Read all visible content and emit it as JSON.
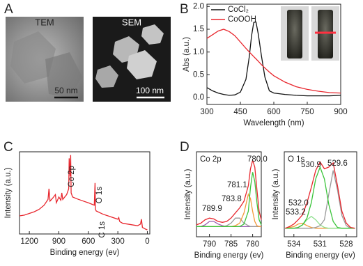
{
  "panel_a": {
    "letter": "A",
    "images": [
      {
        "label": "TEM",
        "scale_bar": "50 nm"
      },
      {
        "label": "SEM",
        "scale_bar": "100 nm"
      }
    ]
  },
  "chart_data": [
    {
      "type": "line",
      "panel_label": "B",
      "xlabel": "Wavelength (nm)",
      "ylabel": "Abs (a.u.)",
      "x": [
        300,
        325,
        350,
        375,
        400,
        425,
        450,
        475,
        490,
        500,
        510,
        520,
        530,
        545,
        560,
        580,
        600,
        650,
        700,
        750,
        800,
        850,
        900
      ],
      "series": [
        {
          "name": "CoCl₂",
          "color": "#111111",
          "values": [
            0.22,
            0.15,
            0.1,
            0.07,
            0.05,
            0.06,
            0.12,
            0.4,
            0.9,
            1.35,
            1.65,
            1.66,
            1.4,
            0.9,
            0.45,
            0.15,
            0.1,
            0.07,
            0.05,
            0.04,
            0.04,
            0.04,
            0.05
          ]
        },
        {
          "name": "CoOOH",
          "color": "#e8262d",
          "values": [
            1.3,
            1.38,
            1.46,
            1.5,
            1.45,
            1.36,
            1.22,
            1.08,
            1.0,
            0.95,
            0.9,
            0.85,
            0.8,
            0.72,
            0.65,
            0.56,
            0.48,
            0.34,
            0.24,
            0.18,
            0.14,
            0.11,
            0.1
          ]
        }
      ],
      "xlim": [
        300,
        900
      ],
      "xticks": [
        300,
        450,
        600,
        750,
        900
      ],
      "ylim": [
        -0.15,
        2.05
      ],
      "yticks": [
        {
          "value": 0,
          "label": "0.0"
        },
        {
          "value": 0.5,
          "label": "0.5"
        },
        {
          "value": 1,
          "label": "1.0"
        },
        {
          "value": 1.5,
          "label": "1.5"
        },
        {
          "value": 2,
          "label": "2.0"
        }
      ]
    },
    {
      "type": "line",
      "panel_label": "C",
      "xlabel": "Binding energy (ev)",
      "ylabel": "Intensity (a.u.)",
      "annotations": [
        "Co 2p",
        "O 1s",
        "C 1s"
      ],
      "x": [
        1300,
        1250,
        1200,
        1150,
        1100,
        1050,
        1010,
        1000,
        990,
        960,
        935,
        925,
        900,
        880,
        870,
        860,
        820,
        800,
        795,
        785,
        780,
        775,
        760,
        720,
        650,
        600,
        560,
        540,
        532,
        528,
        520,
        450,
        400,
        300,
        290,
        285,
        280,
        250,
        200,
        100,
        70,
        60,
        50,
        20,
        0
      ],
      "series": [
        {
          "color": "#e8262d",
          "values": [
            22,
            23,
            25,
            27,
            30,
            35,
            42,
            55,
            40,
            44,
            48,
            38,
            45,
            41,
            50,
            42,
            48,
            55,
            92,
            70,
            96,
            50,
            45,
            43,
            40,
            38,
            36,
            35,
            62,
            30,
            28,
            24,
            22,
            18,
            20,
            17,
            15,
            13,
            12,
            10,
            12,
            18,
            8,
            6,
            5
          ]
        }
      ],
      "xlim": [
        1300,
        -25
      ],
      "xticks": [
        1200,
        900,
        600,
        300,
        0
      ],
      "ylim": [
        0,
        100
      ]
    },
    {
      "type": "line",
      "panel_label": "D",
      "label": "Co 2p",
      "xlabel": "Binding energy (ev)",
      "ylabel": "Intensity (a.u.)",
      "annotations": [
        "789.9",
        "783.8",
        "781.1",
        "780.0"
      ],
      "x": [
        793,
        792,
        791,
        790,
        789,
        788,
        787,
        786,
        785,
        784,
        783,
        782,
        781,
        780.5,
        780,
        779.5,
        779,
        778.5,
        778
      ],
      "series": [
        {
          "color": "#9a5fb0",
          "values": [
            12,
            12,
            14,
            18,
            18,
            15,
            13,
            12,
            12,
            12,
            12,
            12,
            12,
            12,
            12,
            12,
            12,
            12,
            12
          ]
        },
        {
          "color": "#999999",
          "values": [
            12,
            12,
            12,
            12,
            12,
            12,
            12,
            13,
            16,
            22,
            22,
            16,
            13,
            12,
            12,
            12,
            12,
            12,
            12
          ]
        },
        {
          "color": "#f29a3a",
          "values": [
            12,
            12,
            12,
            12,
            12,
            12,
            12,
            12,
            12,
            13,
            16,
            28,
            50,
            45,
            30,
            18,
            13,
            12,
            12
          ]
        },
        {
          "color": "#3ac43a",
          "values": [
            12,
            12,
            12,
            12,
            12,
            12,
            12,
            12,
            12,
            12,
            12,
            15,
            30,
            58,
            76,
            65,
            40,
            20,
            14
          ]
        },
        {
          "color": "#e8262d",
          "values": [
            14,
            16,
            20,
            22,
            21,
            18,
            17,
            18,
            22,
            28,
            34,
            42,
            60,
            80,
            90,
            82,
            55,
            30,
            20
          ]
        }
      ],
      "xlim": [
        793,
        778
      ],
      "xticks": [
        790,
        785,
        780
      ],
      "ylim": [
        0,
        100
      ]
    },
    {
      "type": "line",
      "label": "O 1s",
      "xlabel": "Binding energy (ev)",
      "ylabel": "Intensity (a.u.)",
      "annotations": [
        "530.9",
        "529.6",
        "532.0",
        "533.2"
      ],
      "x": [
        535,
        534.5,
        534,
        533.5,
        533,
        532.5,
        532,
        531.5,
        531,
        530.5,
        530,
        529.5,
        529,
        528.5,
        528,
        527.5,
        527
      ],
      "series": [
        {
          "color": "#f29a3a",
          "values": [
            10,
            11,
            12,
            15,
            16,
            13,
            11,
            10,
            10,
            10,
            10,
            10,
            10,
            10,
            10,
            10,
            10
          ]
        },
        {
          "color": "#8de08d",
          "values": [
            10,
            10,
            10,
            11,
            14,
            20,
            24,
            20,
            14,
            11,
            10,
            10,
            10,
            10,
            10,
            10,
            10
          ]
        },
        {
          "color": "#999999",
          "values": [
            10,
            10,
            10,
            10,
            10,
            10,
            10,
            11,
            13,
            20,
            50,
            78,
            55,
            25,
            13,
            10,
            10
          ]
        },
        {
          "color": "#3ac43a",
          "values": [
            10,
            10,
            10,
            11,
            14,
            22,
            40,
            68,
            82,
            68,
            38,
            18,
            11,
            10,
            10,
            10,
            10
          ]
        },
        {
          "color": "#e8262d",
          "values": [
            10,
            12,
            15,
            20,
            26,
            40,
            58,
            78,
            88,
            80,
            82,
            87,
            60,
            30,
            16,
            11,
            10
          ]
        }
      ],
      "xlim": [
        535.1,
        526.8
      ],
      "xticks": [
        534,
        531,
        528
      ],
      "ylim": [
        0,
        100
      ]
    }
  ]
}
